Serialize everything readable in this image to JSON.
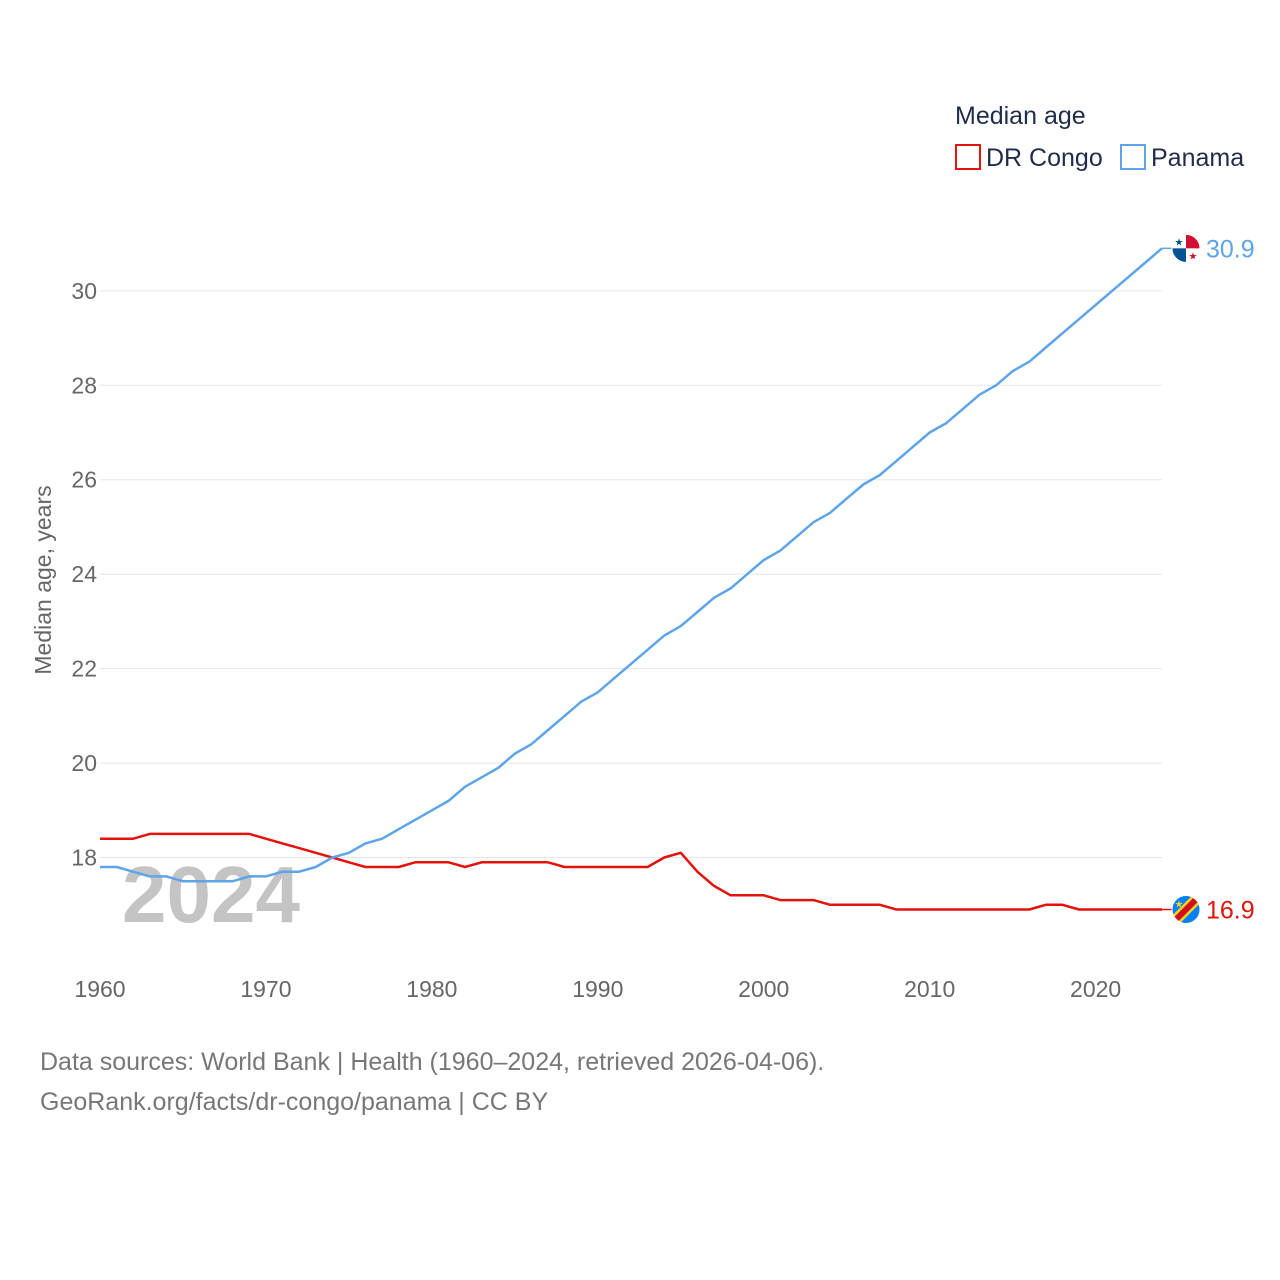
{
  "chart_data": {
    "type": "line",
    "title": "",
    "xlabel": "",
    "ylabel": "Median age, years",
    "legend_title": "Median age",
    "legend_position": "top-right",
    "xlim": [
      1960,
      2024
    ],
    "ylim": [
      16,
      31.5
    ],
    "x_ticks": [
      1960,
      1970,
      1980,
      1990,
      2000,
      2010,
      2020
    ],
    "y_ticks": [
      18,
      20,
      22,
      24,
      26,
      28,
      30
    ],
    "gridlines": "horizontal",
    "year_watermark": "2024",
    "x": [
      1960,
      1961,
      1962,
      1963,
      1964,
      1965,
      1966,
      1967,
      1968,
      1969,
      1970,
      1971,
      1972,
      1973,
      1974,
      1975,
      1976,
      1977,
      1978,
      1979,
      1980,
      1981,
      1982,
      1983,
      1984,
      1985,
      1986,
      1987,
      1988,
      1989,
      1990,
      1991,
      1992,
      1993,
      1994,
      1995,
      1996,
      1997,
      1998,
      1999,
      2000,
      2001,
      2002,
      2003,
      2004,
      2005,
      2006,
      2007,
      2008,
      2009,
      2010,
      2011,
      2012,
      2013,
      2014,
      2015,
      2016,
      2017,
      2018,
      2019,
      2020,
      2021,
      2022,
      2023,
      2024
    ],
    "series": [
      {
        "name": "DR Congo",
        "color": "#e3120b",
        "end_label": "16.9",
        "flag_icon": "dr-congo-flag-icon",
        "values": [
          18.4,
          18.4,
          18.4,
          18.5,
          18.5,
          18.5,
          18.5,
          18.5,
          18.5,
          18.5,
          18.4,
          18.3,
          18.2,
          18.1,
          18.0,
          17.9,
          17.8,
          17.8,
          17.8,
          17.9,
          17.9,
          17.9,
          17.8,
          17.9,
          17.9,
          17.9,
          17.9,
          17.9,
          17.8,
          17.8,
          17.8,
          17.8,
          17.8,
          17.8,
          18.0,
          18.1,
          17.7,
          17.4,
          17.2,
          17.2,
          17.2,
          17.1,
          17.1,
          17.1,
          17.0,
          17.0,
          17.0,
          17.0,
          16.9,
          16.9,
          16.9,
          16.9,
          16.9,
          16.9,
          16.9,
          16.9,
          16.9,
          17.0,
          17.0,
          16.9,
          16.9,
          16.9,
          16.9,
          16.9,
          16.9
        ]
      },
      {
        "name": "Panama",
        "color": "#5da5e8",
        "end_label": "30.9",
        "flag_icon": "panama-flag-icon",
        "values": [
          17.8,
          17.8,
          17.7,
          17.6,
          17.6,
          17.5,
          17.5,
          17.5,
          17.5,
          17.6,
          17.6,
          17.7,
          17.7,
          17.8,
          18.0,
          18.1,
          18.3,
          18.4,
          18.6,
          18.8,
          19.0,
          19.2,
          19.5,
          19.7,
          19.9,
          20.2,
          20.4,
          20.7,
          21.0,
          21.3,
          21.5,
          21.8,
          22.1,
          22.4,
          22.7,
          22.9,
          23.2,
          23.5,
          23.7,
          24.0,
          24.3,
          24.5,
          24.8,
          25.1,
          25.3,
          25.6,
          25.9,
          26.1,
          26.4,
          26.7,
          27.0,
          27.2,
          27.5,
          27.8,
          28.0,
          28.3,
          28.5,
          28.8,
          29.1,
          29.4,
          29.7,
          30.0,
          30.3,
          30.6,
          30.9
        ]
      }
    ]
  },
  "source": {
    "line1": "Data sources: World Bank | Health (1960–2024, retrieved 2026-04-06).",
    "line2": "GeoRank.org/facts/dr-congo/panama | CC BY"
  }
}
